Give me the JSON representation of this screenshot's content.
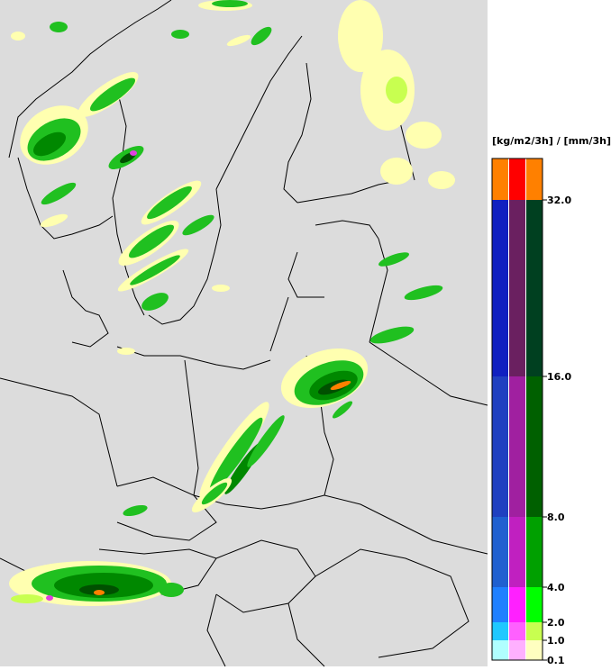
{
  "legend": {
    "unit_label": "[kg/m2/3h] / [mm/3h]",
    "levels": [
      0.1,
      1.0,
      2.0,
      4.0,
      8.0,
      16.0,
      32.0
    ],
    "tick_labels": [
      "0.1",
      "1.0",
      "2.0",
      "4.0",
      "8.0",
      "16.0",
      "32.0"
    ],
    "columns": [
      {
        "colors": [
          "#b0ffff",
          "#20c8ff",
          "#2080ff",
          "#2060d0",
          "#2040c0",
          "#1020c0",
          "#ff8000"
        ]
      },
      {
        "colors": [
          "#ffb0ff",
          "#ff60ff",
          "#ff20ff",
          "#c020c0",
          "#a020a0",
          "#6a2060",
          "#ff0000"
        ]
      },
      {
        "colors": [
          "#ffffc0",
          "#c8ff50",
          "#00ff00",
          "#00a000",
          "#006000",
          "#004020",
          "#ff8000"
        ]
      }
    ]
  },
  "map": {
    "background_color": "#dcdcdc",
    "border_color": "#000000",
    "precip_colors": {
      "light": "#ffffb0",
      "lightgreen": "#c8ff50",
      "green": "#20c020",
      "darkgreen": "#008800",
      "deep": "#005000",
      "magenta": "#e040e0",
      "orange": "#ff8000"
    }
  }
}
